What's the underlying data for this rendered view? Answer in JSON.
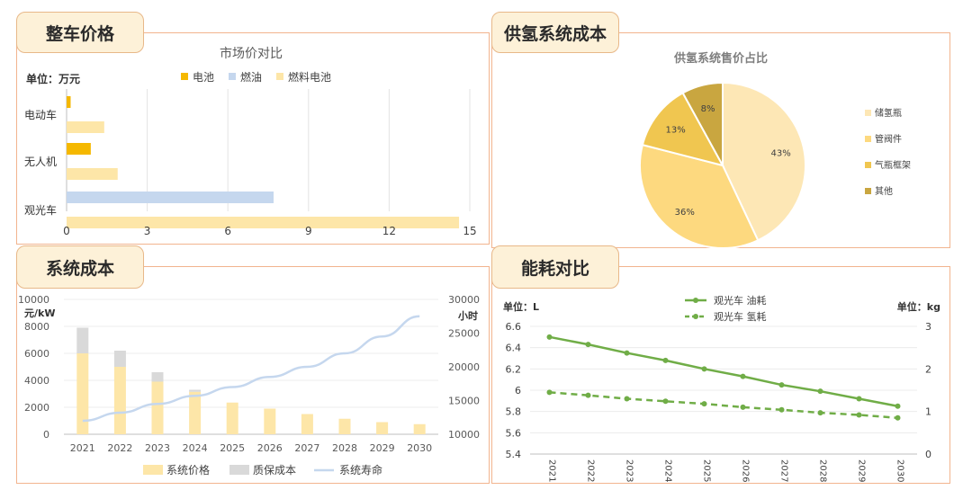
{
  "panels": {
    "price": {
      "tab": "整车价格"
    },
    "cost": {
      "tab": "供氢系统成本"
    },
    "system": {
      "tab": "系统成本"
    },
    "energy": {
      "tab": "能耗对比"
    }
  },
  "chart_data": [
    {
      "id": "market-price",
      "type": "bar",
      "orientation": "horizontal",
      "title": "市场价对比",
      "unit_label": "单位：万元",
      "categories": [
        "电动车",
        "无人机",
        "观光车"
      ],
      "series": [
        {
          "name": "电池",
          "color": "#f5b800",
          "values": [
            0.15,
            0.9,
            null
          ]
        },
        {
          "name": "燃油",
          "color": "#c5d7ee",
          "values": [
            null,
            null,
            7.7
          ]
        },
        {
          "name": "燃料电池",
          "color": "#fde6a8",
          "values": [
            1.4,
            1.9,
            14.6
          ]
        }
      ],
      "xlim": [
        0,
        15
      ],
      "xticks": [
        "0",
        "3",
        "6",
        "9",
        "12",
        "15"
      ],
      "grid": true,
      "legend": "top"
    },
    {
      "id": "hydrogen-cost-share",
      "type": "pie",
      "title": "供氢系统售价占比",
      "slices": [
        {
          "name": "储氢瓶",
          "value": 43,
          "label": "43%",
          "color": "#fde7b5"
        },
        {
          "name": "管阀件",
          "value": 36,
          "label": "36%",
          "color": "#fdd97f"
        },
        {
          "name": "气瓶框架",
          "value": 13,
          "label": "13%",
          "color": "#f0c650"
        },
        {
          "name": "其他",
          "value": 8,
          "label": "8%",
          "color": "#c9a640"
        }
      ],
      "legend": "right"
    },
    {
      "id": "system-cost",
      "type": "bar",
      "stacked": true,
      "y_unit": "元/kW",
      "y2_unit": "小时",
      "categories": [
        "2021",
        "2022",
        "2023",
        "2024",
        "2025",
        "2026",
        "2027",
        "2028",
        "2029",
        "2030"
      ],
      "series": [
        {
          "name": "系统价格",
          "color": "#fde6a8",
          "values": [
            6000,
            5000,
            3900,
            3150,
            2350,
            1900,
            1500,
            1150,
            900,
            750
          ]
        },
        {
          "name": "质保成本",
          "color": "#d9d9d9",
          "values": [
            1900,
            1200,
            700,
            150,
            0,
            0,
            0,
            0,
            0,
            0
          ]
        },
        {
          "name": "系统寿命",
          "type": "line",
          "axis": "right",
          "color": "#c5d7ee",
          "values": [
            12000,
            13200,
            14500,
            15700,
            17000,
            18500,
            20000,
            22000,
            24500,
            27500
          ]
        }
      ],
      "ylim": [
        0,
        10000
      ],
      "yticks": [
        "0",
        "2000",
        "4000",
        "6000",
        "8000",
        "10000"
      ],
      "y2lim": [
        10000,
        30000
      ],
      "y2ticks": [
        "10000",
        "15000",
        "20000",
        "25000",
        "30000"
      ],
      "grid": true,
      "legend": "bottom"
    },
    {
      "id": "energy-consumption",
      "type": "line",
      "y_unit": "单位：L",
      "y2_unit": "单位：kg",
      "categories": [
        "2021",
        "2022",
        "2023",
        "2024",
        "2025",
        "2026",
        "2027",
        "2028",
        "2029",
        "2030"
      ],
      "series": [
        {
          "name": "观光车 油耗",
          "axis": "left",
          "color": "#70ad47",
          "dash": false,
          "values": [
            6.5,
            6.43,
            6.35,
            6.28,
            6.2,
            6.13,
            6.05,
            5.99,
            5.92,
            5.85
          ]
        },
        {
          "name": "观光车 氢耗",
          "axis": "right",
          "color": "#70ad47",
          "dash": true,
          "values": [
            1.45,
            1.38,
            1.3,
            1.24,
            1.18,
            1.1,
            1.04,
            0.97,
            0.92,
            0.85
          ]
        }
      ],
      "ylim": [
        5.4,
        6.6
      ],
      "yticks": [
        "5.4",
        "5.6",
        "5.8",
        "6",
        "6.2",
        "6.4",
        "6.6"
      ],
      "y2lim": [
        0,
        3
      ],
      "y2ticks": [
        "0",
        "1",
        "2",
        "3"
      ],
      "grid": true,
      "legend": "top"
    }
  ]
}
